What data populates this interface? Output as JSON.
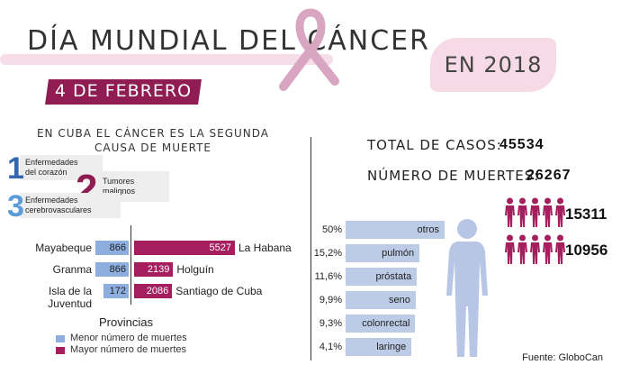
{
  "header": {
    "title": "DÍA MUNDIAL DEL CÁNCER",
    "date": "4 DE FEBRERO",
    "year": "EN 2018"
  },
  "colors": {
    "accent": "#8f1c52",
    "bar_red": "#a51e5e",
    "bar_blue": "#8faee0",
    "bar_light": "#bccce6",
    "ribbon": "#d9a6c2",
    "figure": "#b7c6e4"
  },
  "ranking": {
    "subtitle_line1": "EN CUBA EL CÁNCER ES LA SEGUNDA",
    "subtitle_line2": "CAUSA DE MUERTE",
    "items": [
      {
        "rank": "1",
        "label_line1": "Enfermedades",
        "label_line2": "del corazón",
        "color": "#3366b0"
      },
      {
        "rank": "2",
        "label_line1": "Tumores",
        "label_line2": "malignos",
        "color": "#8f1c52"
      },
      {
        "rank": "3",
        "label_line1": "Enfermedades",
        "label_line2": "cerebrovasculares",
        "color": "#5a9bd8"
      }
    ]
  },
  "stats": {
    "total_label": "TOTAL DE CASOS:",
    "total_value": "45534",
    "deaths_label": "NÚMERO DE MUERTES:",
    "deaths_value": "26267",
    "group_a_value": "15311",
    "group_b_value": "10956"
  },
  "source": "Fuente: GloboCan",
  "chart_data": [
    {
      "type": "bar",
      "orientation": "horizontal",
      "xlabel": "Provincias",
      "legend": [
        "Menor número de muertes",
        "Mayor número de muertes"
      ],
      "legend_placement": "bottom",
      "series": [
        {
          "name": "Menor número de muertes",
          "categories": [
            "Mayabeque",
            "Granma",
            "Isla de la Juventud"
          ],
          "values": [
            866,
            866,
            172
          ]
        },
        {
          "name": "Mayor número de muertes",
          "categories": [
            "La Habana",
            "Holguín",
            "Santiago de Cuba"
          ],
          "values": [
            5527,
            2139,
            2086
          ]
        }
      ]
    },
    {
      "type": "bar",
      "orientation": "horizontal",
      "categories": [
        "otros",
        "pulmón",
        "próstata",
        "seno",
        "colonrectal",
        "laringe"
      ],
      "values": [
        50,
        15.2,
        11.6,
        9.9,
        9.3,
        4.1
      ],
      "value_labels": [
        "50%",
        "15,2%",
        "11,6%",
        "9,9%",
        "9,3%",
        "4,1%"
      ]
    }
  ]
}
